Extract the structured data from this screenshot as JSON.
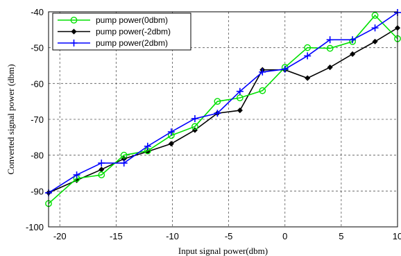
{
  "chart_data": {
    "type": "line",
    "title": "",
    "xlabel": "Input signal power(dbm)",
    "ylabel": "Converted signal power (dbm)",
    "xlim": [
      -21,
      10
    ],
    "ylim": [
      -100,
      -40
    ],
    "xticks": [
      -20,
      -15,
      -10,
      -5,
      0,
      5,
      10
    ],
    "yticks": [
      -40,
      -50,
      -60,
      -70,
      -80,
      -90,
      -100
    ],
    "grid": true,
    "grid_style": "dashed",
    "legend_position": "top-left",
    "series": [
      {
        "name": "pump power(0dbm)",
        "color": "#00e000",
        "marker": "circle",
        "x": [
          -21,
          -18.5,
          -16.3,
          -14.3,
          -12.2,
          -10.1,
          -8,
          -6,
          -4,
          -2,
          0,
          2,
          4,
          6,
          8,
          10
        ],
        "y": [
          -93.5,
          -86.5,
          -85.5,
          -80,
          -78.8,
          -74.5,
          -72,
          -65,
          -64,
          -62,
          -55.5,
          -50,
          -50.2,
          -48.3,
          -41,
          -47.5
        ]
      },
      {
        "name": "pump power(-2dbm)",
        "color": "#000000",
        "marker": "diamond",
        "x": [
          -21,
          -18.5,
          -16.3,
          -14.3,
          -12.2,
          -10.1,
          -8,
          -6,
          -4,
          -2,
          0,
          2,
          4,
          6,
          8,
          10
        ],
        "y": [
          -90.5,
          -87,
          -84,
          -81,
          -79,
          -76.8,
          -73,
          -68.3,
          -67.5,
          -56.2,
          -56.2,
          -58.5,
          -55.5,
          -51.8,
          -48.3,
          -44.5
        ]
      },
      {
        "name": "pump power(2dbm)",
        "color": "#0000ff",
        "marker": "plus",
        "x": [
          -21,
          -18.5,
          -16.3,
          -14.3,
          -12.2,
          -10.1,
          -8,
          -6,
          -4,
          -2,
          0,
          2,
          4,
          6,
          8,
          10
        ],
        "y": [
          -90.5,
          -85.5,
          -82.2,
          -82.2,
          -77.5,
          -73.5,
          -69.8,
          -68.3,
          -62.2,
          -56.8,
          -56,
          -52.3,
          -47.8,
          -47.8,
          -44.5,
          -40.2
        ]
      }
    ]
  }
}
